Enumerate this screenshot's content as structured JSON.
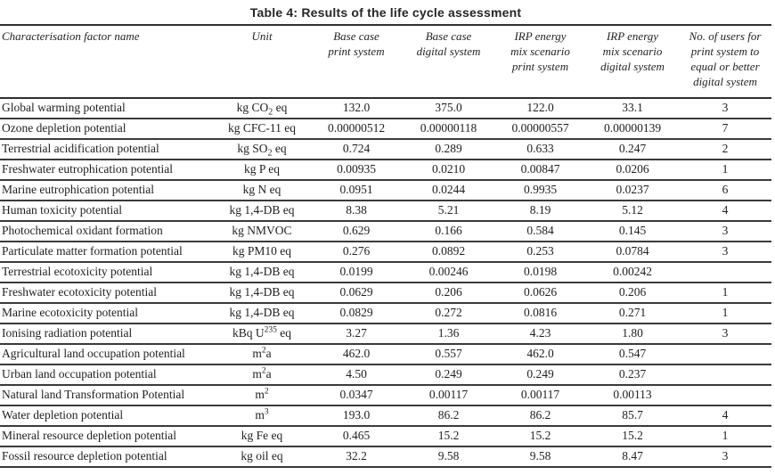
{
  "title": "Table 4: Results of the life cycle assessment",
  "colors": {
    "text": "#1f1f1f",
    "rule": "#3a3a3a",
    "background": "#ffffff"
  },
  "table": {
    "columns": [
      {
        "label": "Characterisation factor name"
      },
      {
        "label": "Unit"
      },
      {
        "label": "Base case\nprint system"
      },
      {
        "label": "Base case\ndigital system"
      },
      {
        "label": "IRP energy\nmix scenario\nprint system"
      },
      {
        "label": "IRP energy\nmix scenario\ndigital system"
      },
      {
        "label": "No. of users for\nprint system to\nequal or better\ndigital system"
      }
    ],
    "rows": [
      {
        "factor": "Global warming potential",
        "unit": "kg CO_2_ eq",
        "values": [
          "132.0",
          "375.0",
          "122.0",
          "33.1"
        ],
        "users": "3"
      },
      {
        "factor": "Ozone depletion potential",
        "unit": "kg CFC-11 eq",
        "values": [
          "0.00000512",
          "0.00000118",
          "0.00000557",
          "0.00000139"
        ],
        "users": "7"
      },
      {
        "factor": "Terrestrial acidification potential",
        "unit": "kg SO_2_ eq",
        "values": [
          "0.724",
          "0.289",
          "0.633",
          "0.247"
        ],
        "users": "2"
      },
      {
        "factor": "Freshwater eutrophication potential",
        "unit": "kg P eq",
        "values": [
          "0.00935",
          "0.0210",
          "0.00847",
          "0.0206"
        ],
        "users": "1"
      },
      {
        "factor": "Marine eutrophication potential",
        "unit": "kg N eq",
        "values": [
          "0.0951",
          "0.0244",
          "0.9935",
          "0.0237"
        ],
        "users": "6"
      },
      {
        "factor": "Human toxicity potential",
        "unit": "kg 1,4-DB eq",
        "values": [
          "8.38",
          "5.21",
          "8.19",
          "5.12"
        ],
        "users": "4"
      },
      {
        "factor": "Photochemical oxidant formation",
        "unit": "kg NMVOC",
        "values": [
          "0.629",
          "0.166",
          "0.584",
          "0.145"
        ],
        "users": "3"
      },
      {
        "factor": "Particulate matter formation potential",
        "unit": "kg PM10 eq",
        "values": [
          "0.276",
          "0.0892",
          "0.253",
          "0.0784"
        ],
        "users": "3"
      },
      {
        "factor": "Terrestrial ecotoxicity potential",
        "unit": "kg 1,4-DB eq",
        "values": [
          "0.0199",
          "0.00246",
          "0.0198",
          "0.00242"
        ],
        "users": ""
      },
      {
        "factor": "Freshwater ecotoxicity potential",
        "unit": "kg 1,4-DB eq",
        "values": [
          "0.0629",
          "0.206",
          "0.0626",
          "0.206"
        ],
        "users": "1"
      },
      {
        "factor": "Marine ecotoxicity potential",
        "unit": "kg 1,4-DB eq",
        "values": [
          "0.0829",
          "0.272",
          "0.0816",
          "0.271"
        ],
        "users": "1"
      },
      {
        "factor": "Ionising radiation potential",
        "unit": "kBq U^235^ eq",
        "values": [
          "3.27",
          "1.36",
          "4.23",
          "1.80"
        ],
        "users": "3"
      },
      {
        "factor": "Agricultural land occupation potential",
        "unit": "m^2^a",
        "values": [
          "462.0",
          "0.557",
          "462.0",
          "0.547"
        ],
        "users": ""
      },
      {
        "factor": "Urban land occupation potential",
        "unit": "m^2^a",
        "values": [
          "4.50",
          "0.249",
          "0.249",
          "0.237"
        ],
        "users": ""
      },
      {
        "factor": "Natural land Transformation Potential",
        "unit": "m^2^",
        "values": [
          "0.0347",
          "0.00117",
          "0.00117",
          "0.00113"
        ],
        "users": ""
      },
      {
        "factor": "Water depletion potential",
        "unit": "m^3^",
        "values": [
          "193.0",
          "86.2",
          "86.2",
          "85.7"
        ],
        "users": "4"
      },
      {
        "factor": "Mineral resource depletion potential",
        "unit": "kg Fe eq",
        "values": [
          "0.465",
          "15.2",
          "15.2",
          "15.2"
        ],
        "users": "1"
      },
      {
        "factor": "Fossil resource depletion potential",
        "unit": "kg oil eq",
        "values": [
          "32.2",
          "9.58",
          "9.58",
          "8.47"
        ],
        "users": "3"
      }
    ]
  }
}
